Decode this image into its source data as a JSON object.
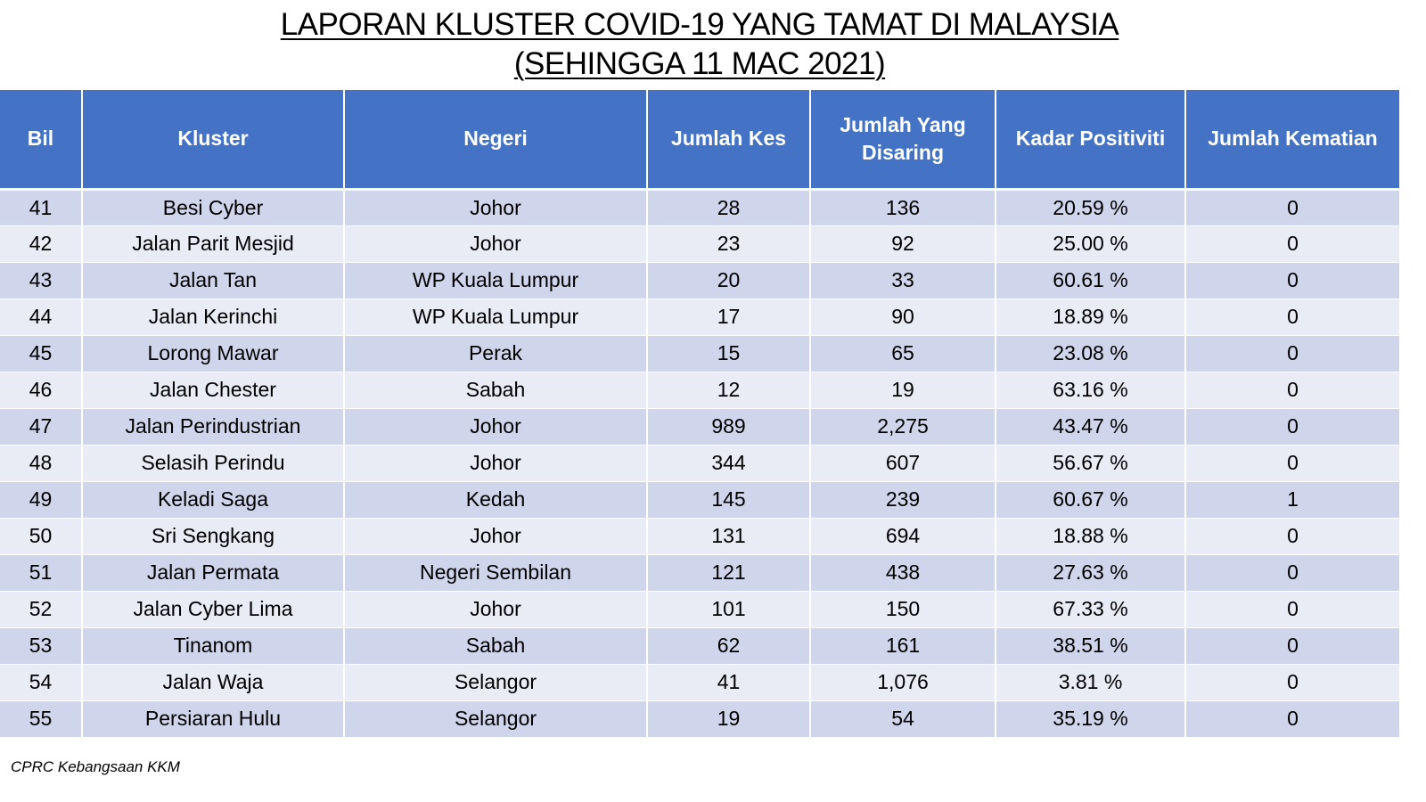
{
  "title": {
    "line1": "LAPORAN KLUSTER COVID-19 YANG TAMAT DI MALAYSIA",
    "line2": "(SEHINGGA  11 MAC 2021)"
  },
  "table": {
    "headers": [
      "Bil",
      "Kluster",
      "Negeri",
      "Jumlah Kes",
      "Jumlah Yang Disaring",
      "Kadar Positiviti",
      "Jumlah Kematian"
    ],
    "rows": [
      [
        "41",
        "Besi Cyber",
        "Johor",
        "28",
        "136",
        "20.59 %",
        "0"
      ],
      [
        "42",
        "Jalan Parit Mesjid",
        "Johor",
        "23",
        "92",
        "25.00 %",
        "0"
      ],
      [
        "43",
        "Jalan Tan",
        "WP Kuala Lumpur",
        "20",
        "33",
        "60.61 %",
        "0"
      ],
      [
        "44",
        "Jalan Kerinchi",
        "WP Kuala Lumpur",
        "17",
        "90",
        "18.89 %",
        "0"
      ],
      [
        "45",
        "Lorong Mawar",
        "Perak",
        "15",
        "65",
        "23.08 %",
        "0"
      ],
      [
        "46",
        "Jalan Chester",
        "Sabah",
        "12",
        "19",
        "63.16 %",
        "0"
      ],
      [
        "47",
        "Jalan Perindustrian",
        "Johor",
        "989",
        "2,275",
        "43.47 %",
        "0"
      ],
      [
        "48",
        "Selasih Perindu",
        "Johor",
        "344",
        "607",
        "56.67 %",
        "0"
      ],
      [
        "49",
        "Keladi Saga",
        "Kedah",
        "145",
        "239",
        "60.67 %",
        "1"
      ],
      [
        "50",
        "Sri Sengkang",
        "Johor",
        "131",
        "694",
        "18.88 %",
        "0"
      ],
      [
        "51",
        "Jalan Permata",
        "Negeri Sembilan",
        "121",
        "438",
        "27.63 %",
        "0"
      ],
      [
        "52",
        "Jalan Cyber Lima",
        "Johor",
        "101",
        "150",
        "67.33 %",
        "0"
      ],
      [
        "53",
        "Tinanom",
        "Sabah",
        "62",
        "161",
        "38.51 %",
        "0"
      ],
      [
        "54",
        "Jalan Waja",
        "Selangor",
        "41",
        "1,076",
        "3.81 %",
        "0"
      ],
      [
        "55",
        "Persiaran Hulu",
        "Selangor",
        "19",
        "54",
        "35.19 %",
        "0"
      ]
    ]
  },
  "source": "CPRC Kebangsaan KKM",
  "colors": {
    "header_bg": "#4472c4",
    "header_text": "#ffffff",
    "row_odd": "#cfd5ea",
    "row_even": "#e9ebf5"
  }
}
